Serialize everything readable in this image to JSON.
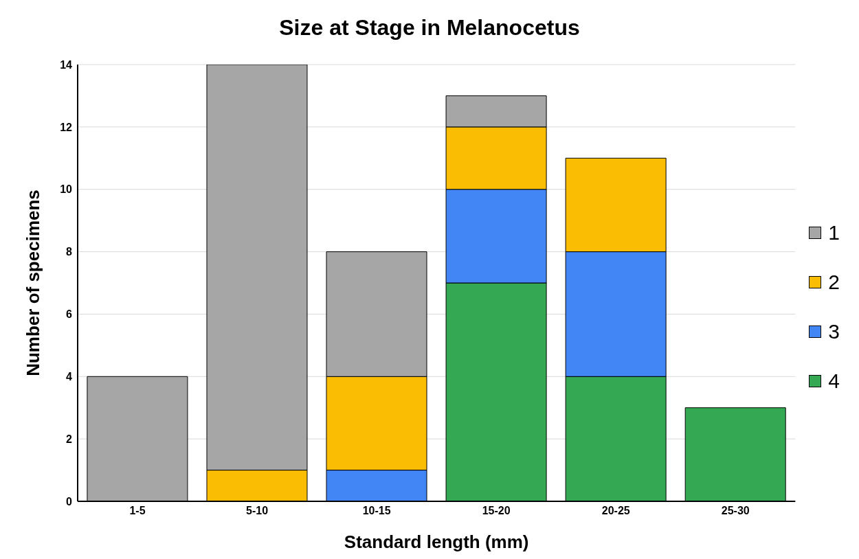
{
  "chart_data": {
    "type": "bar",
    "title": "Size at Stage in Melanocetus",
    "xlabel": "Standard length (mm)",
    "ylabel": "Number of specimens",
    "categories": [
      "1-5",
      "5-10",
      "10-15",
      "15-20",
      "20-25",
      "25-30"
    ],
    "stacked": true,
    "series": [
      {
        "name": "4",
        "color": "#34a853",
        "values": [
          0,
          0,
          0,
          7,
          4,
          3
        ]
      },
      {
        "name": "3",
        "color": "#4285f4",
        "values": [
          0,
          0,
          1,
          3,
          4,
          0
        ]
      },
      {
        "name": "2",
        "color": "#fbbc04",
        "values": [
          0,
          1,
          3,
          2,
          3,
          0
        ]
      },
      {
        "name": "1",
        "color": "#a6a6a6",
        "values": [
          4,
          13,
          4,
          1,
          0,
          0
        ]
      }
    ],
    "ylim": [
      0,
      14
    ],
    "yticks": [
      0,
      2,
      4,
      6,
      8,
      10,
      12,
      14
    ],
    "grid": "y",
    "legend": "right"
  }
}
